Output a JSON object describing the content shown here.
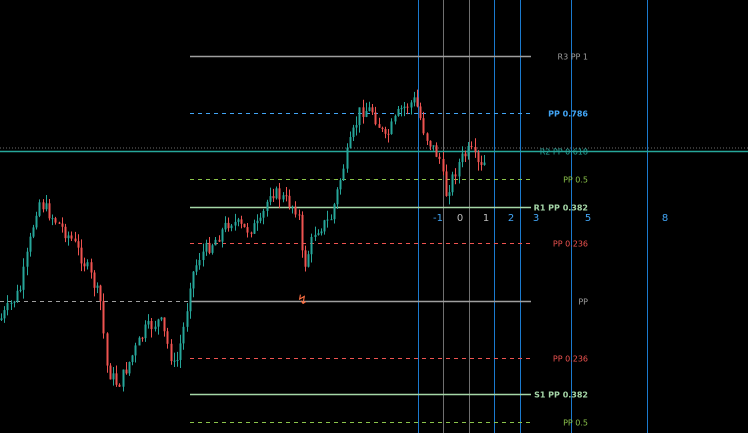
{
  "colors": {
    "background": "#000000",
    "bull": "#26a69a",
    "bear": "#ef5350",
    "gray": "#9e9e9e",
    "blue": "#42a5f5",
    "teal": "#26a69a",
    "green": "#8bc34a",
    "lime": "#a5d6a7",
    "red": "#ef5350",
    "fib_line": "#1e88e5"
  },
  "pivot_levels": [
    {
      "id": "r3",
      "label": "R3 PP 1",
      "price": 111.0,
      "color": "#9e9e9e",
      "dashed": false,
      "bold": false
    },
    {
      "id": "pp786",
      "label": "PP 0.786",
      "price": 104.0,
      "color": "#42a5f5",
      "dashed": true,
      "bold": true
    },
    {
      "id": "r2",
      "label": "R2 PP 0.618",
      "price": 99.4,
      "color": "#26a69a",
      "dashed": false,
      "bold": false
    },
    {
      "id": "pp5",
      "label": "PP 0.5",
      "price": 96.0,
      "color": "#8bc34a",
      "dashed": true,
      "bold": false
    },
    {
      "id": "r1",
      "label": "R1 PP 0.382",
      "price": 92.6,
      "color": "#a5d6a7",
      "dashed": false,
      "bold": true
    },
    {
      "id": "pp236a",
      "label": "PP 0.236",
      "price": 88.2,
      "color": "#ef5350",
      "dashed": true,
      "bold": false
    },
    {
      "id": "pp",
      "label": "PP",
      "price": 81.2,
      "color": "#9e9e9e",
      "dashed": false,
      "bold": false
    },
    {
      "id": "pp236b",
      "label": "PP 0.236",
      "price": 74.2,
      "color": "#ef5350",
      "dashed": true,
      "bold": false
    },
    {
      "id": "s1",
      "label": "S1 PP 0.382",
      "price": 69.8,
      "color": "#a5d6a7",
      "dashed": false,
      "bold": true
    },
    {
      "id": "pp5b",
      "label": "PP 0.5",
      "price": 66.4,
      "color": "#8bc34a",
      "dashed": true,
      "bold": false
    }
  ],
  "fib_time_zones": [
    "-1",
    "0",
    "1",
    "2",
    "3",
    "5",
    "8"
  ],
  "pivot_start_label": "↯",
  "series_seed": 7
}
